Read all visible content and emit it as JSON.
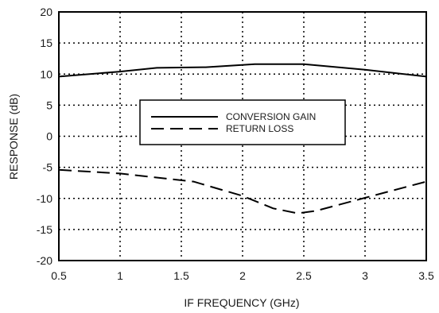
{
  "chart_data": {
    "type": "line",
    "title": "",
    "xlabel": "IF FREQUENCY (GHz)",
    "ylabel": "RESPONSE (dB)",
    "xlim": [
      0.5,
      3.5
    ],
    "ylim": [
      -20,
      20
    ],
    "x_ticks": [
      0.5,
      1,
      1.5,
      2,
      2.5,
      3,
      3.5
    ],
    "x_tick_labels": [
      "0.5",
      "1",
      "1.5",
      "2",
      "2.5",
      "3",
      "3.5"
    ],
    "y_ticks": [
      -20,
      -15,
      -10,
      -5,
      0,
      5,
      10,
      15,
      20
    ],
    "y_tick_labels": [
      "-20",
      "-15",
      "-10",
      "-5",
      "0",
      "5",
      "10",
      "15",
      "20"
    ],
    "grid": true,
    "grid_style": "dotted",
    "legend_position": "center",
    "series": [
      {
        "name": "CONVERSION GAIN",
        "line_style": "solid",
        "color": "#000000",
        "x": [
          0.5,
          1.0,
          1.3,
          1.7,
          2.1,
          2.5,
          3.0,
          3.5
        ],
        "y": [
          9.6,
          10.4,
          11.0,
          11.1,
          11.6,
          11.6,
          10.7,
          9.6
        ]
      },
      {
        "name": "RETURN LOSS",
        "line_style": "dashed",
        "color": "#000000",
        "x": [
          0.5,
          1.0,
          1.6,
          2.0,
          2.25,
          2.45,
          2.6,
          3.0,
          3.5
        ],
        "y": [
          -5.4,
          -6.0,
          -7.3,
          -9.6,
          -11.6,
          -12.4,
          -12.0,
          -9.9,
          -7.3
        ]
      }
    ]
  }
}
